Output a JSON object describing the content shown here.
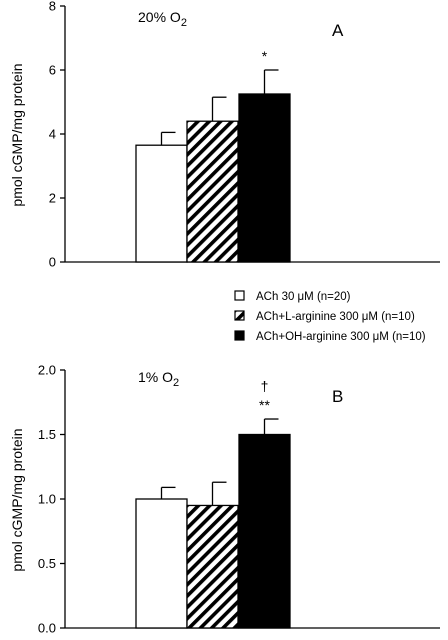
{
  "chart_data": [
    {
      "type": "bar",
      "panel_label": "A",
      "condition": "20% O",
      "condition_sub": "2",
      "ylabel": "pmol cGMP/mg protein",
      "ylim": [
        0,
        8
      ],
      "yticks": [
        "0",
        "2",
        "4",
        "6",
        "8"
      ],
      "ytick_values": [
        0,
        2,
        4,
        6,
        8
      ],
      "series": [
        {
          "name": "ACh 30 μM (n=20)",
          "value": 3.65,
          "error": 0.4,
          "fill": "white",
          "annotation": ""
        },
        {
          "name": "ACh+L-arginine 300 μM (n=10)",
          "value": 4.4,
          "error": 0.75,
          "fill": "hatched",
          "annotation": ""
        },
        {
          "name": "ACh+OH-arginine 300 μM (n=10)",
          "value": 5.25,
          "error": 0.75,
          "fill": "black",
          "annotation": "*"
        }
      ]
    },
    {
      "type": "bar",
      "panel_label": "B",
      "condition": "1% O",
      "condition_sub": "2",
      "ylabel": "pmol cGMP/mg protein",
      "ylim": [
        0,
        2.0
      ],
      "yticks": [
        "0.0",
        "0.5",
        "1.0",
        "1.5",
        "2.0"
      ],
      "ytick_values": [
        0,
        0.5,
        1.0,
        1.5,
        2.0
      ],
      "series": [
        {
          "name": "ACh 30 μM (n=20)",
          "value": 1.0,
          "error": 0.09,
          "fill": "white",
          "annotation": ""
        },
        {
          "name": "ACh+L-arginine 300 μM (n=10)",
          "value": 0.95,
          "error": 0.18,
          "fill": "hatched",
          "annotation": ""
        },
        {
          "name": "ACh+OH-arginine 300 μM (n=10)",
          "value": 1.5,
          "error": 0.12,
          "fill": "black",
          "annotation": "**",
          "annotation2": "†"
        }
      ]
    }
  ],
  "legend": [
    {
      "label": "ACh 30 μM (n=20)",
      "fill": "white"
    },
    {
      "label": "ACh+L-arginine 300 μM (n=10)",
      "fill": "hatched"
    },
    {
      "label": "ACh+OH-arginine 300 μM (n=10)",
      "fill": "black"
    }
  ]
}
